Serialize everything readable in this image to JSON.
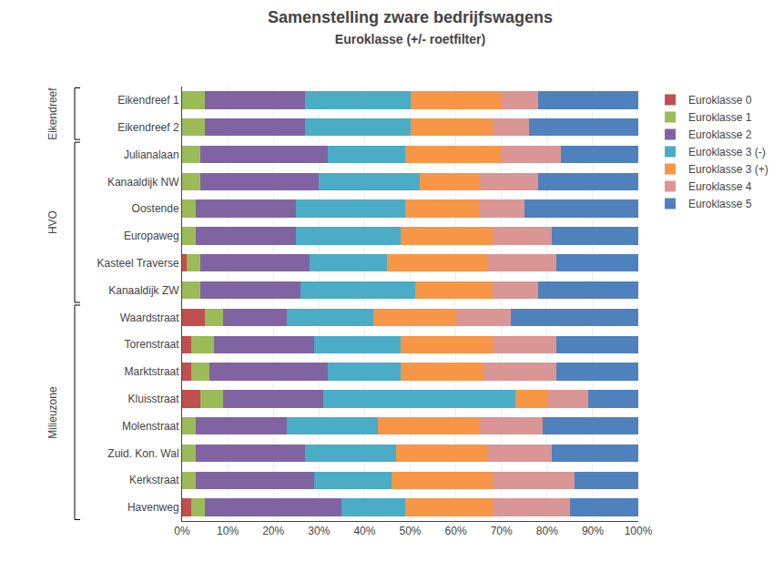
{
  "chart_data": {
    "type": "bar",
    "orientation": "horizontal",
    "stacked": true,
    "title": "Samenstelling zware bedrijfswagens",
    "subtitle": "Euroklasse (+/- roetfilter)",
    "categories": [
      "Eikendreef 1",
      "Eikendreef 2",
      "Julianalaan",
      "Kanaaldijk NW",
      "Oostende",
      "Europaweg",
      "Kasteel Traverse",
      "Kanaaldijk ZW",
      "Waardstraat",
      "Torenstraat",
      "Marktstraat",
      "Kluisstraat",
      "Molenstraat",
      "Zuid. Kon. Wal",
      "Kerkstraat",
      "Havenweg"
    ],
    "groups": [
      {
        "label": "Eikendreef",
        "first": "Eikendreef 1",
        "last": "Eikendreef 2"
      },
      {
        "label": "HVO",
        "first": "Julianalaan",
        "last": "Kanaaldijk ZW"
      },
      {
        "label": "Milieuzone",
        "first": "Waardstraat",
        "last": "Havenweg"
      }
    ],
    "series": [
      {
        "name": "Euroklasse 0",
        "color": "#c0504d",
        "values": [
          0,
          0,
          0,
          0,
          0,
          0,
          1,
          0,
          5,
          2,
          2,
          4,
          0,
          0,
          0,
          2
        ]
      },
      {
        "name": "Euroklasse 1",
        "color": "#9bbb59",
        "values": [
          5,
          5,
          4,
          4,
          3,
          3,
          3,
          4,
          4,
          5,
          4,
          5,
          3,
          3,
          3,
          3
        ]
      },
      {
        "name": "Euroklasse 2",
        "color": "#8064a2",
        "values": [
          22,
          22,
          28,
          26,
          22,
          22,
          24,
          22,
          14,
          22,
          26,
          22,
          20,
          24,
          26,
          30
        ]
      },
      {
        "name": "Euroklasse 3 (-)",
        "color": "#4bacc6",
        "values": [
          23,
          23,
          17,
          22,
          24,
          23,
          17,
          25,
          19,
          19,
          16,
          42,
          20,
          20,
          17,
          14
        ]
      },
      {
        "name": "Euroklasse 3 (+)",
        "color": "#f79646",
        "values": [
          20,
          18,
          21,
          13,
          16,
          20,
          22,
          17,
          18,
          20,
          18,
          7,
          22,
          20,
          22,
          19
        ]
      },
      {
        "name": "Euroklasse 4",
        "color": "#d99694",
        "values": [
          8,
          8,
          13,
          13,
          10,
          13,
          15,
          10,
          12,
          14,
          16,
          9,
          14,
          14,
          18,
          17
        ]
      },
      {
        "name": "Euroklasse 5",
        "color": "#4f81bd",
        "values": [
          22,
          24,
          17,
          22,
          25,
          19,
          18,
          22,
          28,
          18,
          18,
          11,
          21,
          19,
          14,
          15
        ]
      }
    ],
    "xlim": [
      0,
      100
    ],
    "xticks": [
      {
        "value": 0,
        "label": "0%"
      },
      {
        "value": 10,
        "label": "10%"
      },
      {
        "value": 20,
        "label": "20%"
      },
      {
        "value": 30,
        "label": "30%"
      },
      {
        "value": 40,
        "label": "40%"
      },
      {
        "value": 50,
        "label": "50%"
      },
      {
        "value": 60,
        "label": "60%"
      },
      {
        "value": 70,
        "label": "70%"
      },
      {
        "value": 80,
        "label": "80%"
      },
      {
        "value": 90,
        "label": "90%"
      },
      {
        "value": 100,
        "label": "100%"
      }
    ],
    "grid": true,
    "legend": "upper right"
  }
}
